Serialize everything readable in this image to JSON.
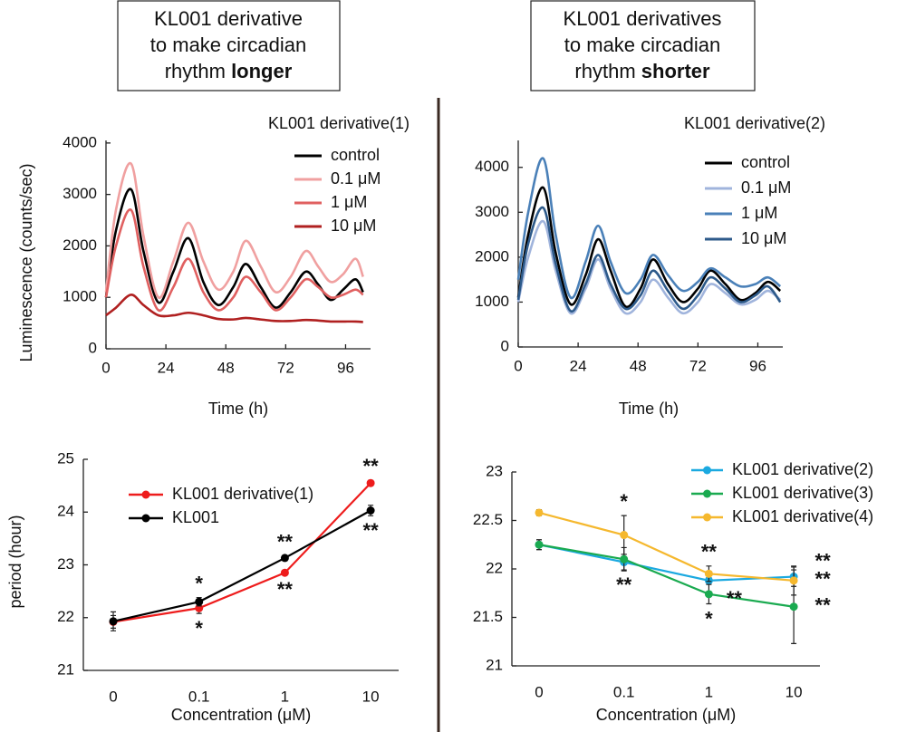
{
  "headers": [
    {
      "lines": [
        "KL001 derivative",
        "to make circadian",
        "rhythm"
      ],
      "bold": "longer"
    },
    {
      "lines": [
        "KL001 derivatives",
        "to make circadian",
        "rhythm"
      ],
      "bold": "shorter"
    }
  ],
  "chart_data": [
    {
      "type": "line",
      "title": "KL001 derivative(1)",
      "x_label": "Time (h)",
      "y_label": "Luminescence (counts/sec)",
      "x": [
        0,
        4,
        10,
        15,
        21,
        27,
        33,
        39,
        45,
        51,
        56,
        62,
        68,
        74,
        80,
        85,
        90,
        95,
        100,
        103
      ],
      "xlim": [
        0,
        106
      ],
      "ylim": [
        0,
        4050
      ],
      "xticks": [
        0,
        24,
        48,
        72,
        96
      ],
      "yticks": [
        0,
        1000,
        2000,
        3000,
        4000
      ],
      "series": [
        {
          "name": "control",
          "color": "#000000",
          "values": [
            1000,
            2300,
            3100,
            1900,
            900,
            1500,
            2150,
            1300,
            850,
            1200,
            1650,
            1200,
            800,
            1100,
            1500,
            1250,
            950,
            1150,
            1350,
            1100
          ]
        },
        {
          "name": "0.1 μM",
          "color": "#f0a0a0",
          "values": [
            1100,
            2700,
            3600,
            2200,
            1000,
            1700,
            2450,
            1700,
            1150,
            1500,
            2100,
            1600,
            1100,
            1400,
            1900,
            1600,
            1300,
            1450,
            1750,
            1400
          ]
        },
        {
          "name": "1 μM",
          "color": "#e06060",
          "values": [
            1000,
            2000,
            2700,
            1600,
            750,
            1200,
            1750,
            1100,
            750,
            1000,
            1400,
            1100,
            750,
            1000,
            1350,
            1200,
            1000,
            1050,
            1150,
            1050
          ]
        },
        {
          "name": "10 μM",
          "color": "#b02020",
          "values": [
            650,
            800,
            1050,
            850,
            650,
            650,
            700,
            650,
            580,
            570,
            600,
            570,
            540,
            540,
            560,
            550,
            530,
            530,
            530,
            520
          ]
        }
      ]
    },
    {
      "type": "line",
      "title": "KL001 derivative(2)",
      "x_label": "Time (h)",
      "x": [
        0,
        4,
        10,
        15,
        21,
        27,
        32,
        37,
        43,
        49,
        54,
        60,
        66,
        72,
        77,
        83,
        89,
        95,
        100,
        105
      ],
      "xlim": [
        0,
        106
      ],
      "ylim": [
        0,
        4600
      ],
      "xticks": [
        0,
        24,
        48,
        72,
        96
      ],
      "yticks": [
        0,
        1000,
        2000,
        3000,
        4000
      ],
      "series": [
        {
          "name": "control",
          "color": "#000000",
          "values": [
            1100,
            2500,
            3550,
            2100,
            950,
            1600,
            2400,
            1700,
            900,
            1300,
            1950,
            1400,
            1000,
            1300,
            1700,
            1400,
            1050,
            1200,
            1450,
            1250
          ]
        },
        {
          "name": "0.1 μM",
          "color": "#a0b4dc",
          "values": [
            1000,
            2000,
            2800,
            1700,
            750,
            1300,
            1950,
            1300,
            750,
            1000,
            1500,
            1100,
            750,
            1000,
            1400,
            1200,
            950,
            1050,
            1250,
            1050
          ]
        },
        {
          "name": "1 μM",
          "color": "#4a80b8",
          "values": [
            1500,
            3000,
            4200,
            2500,
            1100,
            1900,
            2700,
            1900,
            1200,
            1500,
            2050,
            1600,
            1250,
            1450,
            1750,
            1550,
            1350,
            1400,
            1550,
            1350
          ]
        },
        {
          "name": "10 μM",
          "color": "#2d5a8a",
          "values": [
            1050,
            2300,
            3100,
            1850,
            800,
            1400,
            2050,
            1400,
            850,
            1150,
            1700,
            1250,
            850,
            1150,
            1550,
            1300,
            1000,
            1150,
            1350,
            1000
          ]
        }
      ]
    },
    {
      "type": "line",
      "x_label": "Concentration (μM)",
      "y_label": "period (hour)",
      "categories": [
        "0",
        "0.1",
        "1",
        "10"
      ],
      "ylim": [
        21,
        25
      ],
      "yticks": [
        21,
        22,
        23,
        24,
        25
      ],
      "series": [
        {
          "name": "KL001 derivative(1)",
          "color": "#ee1c1c",
          "values": [
            21.92,
            22.18,
            22.85,
            24.55
          ],
          "errors": [
            0.12,
            0.1,
            0.03,
            0.05
          ],
          "significance": [
            null,
            "*",
            "**",
            "**"
          ]
        },
        {
          "name": "KL001",
          "color": "#000000",
          "values": [
            21.93,
            22.3,
            23.13,
            24.03
          ],
          "errors": [
            0.18,
            0.08,
            0.04,
            0.1
          ],
          "significance": [
            null,
            "*",
            "**",
            "**"
          ]
        }
      ]
    },
    {
      "type": "line",
      "x_label": "Concentration (μM)",
      "categories": [
        "0",
        "0.1",
        "1",
        "10"
      ],
      "ylim": [
        21,
        23
      ],
      "yticks": [
        21,
        21.5,
        22,
        22.5,
        23
      ],
      "series": [
        {
          "name": "KL001 derivative(2)",
          "color": "#1ba9e0",
          "values": [
            22.25,
            22.07,
            21.88,
            21.92
          ],
          "errors": [
            0.05,
            0.08,
            0.03,
            0.1
          ],
          "significance": [
            null,
            "**",
            "**",
            "**"
          ]
        },
        {
          "name": "KL001 derivative(3)",
          "color": "#1aaa50",
          "values": [
            22.25,
            22.1,
            21.74,
            21.61
          ],
          "errors": [
            0.05,
            0.12,
            0.1,
            0.38
          ],
          "significance": [
            null,
            null,
            "*",
            "**"
          ]
        },
        {
          "name": "KL001 derivative(4)",
          "color": "#f5b82e",
          "values": [
            22.58,
            22.35,
            21.95,
            21.88
          ],
          "errors": [
            0.03,
            0.2,
            0.08,
            0.15
          ],
          "significance": [
            null,
            "*",
            "**",
            "**"
          ]
        }
      ]
    }
  ]
}
